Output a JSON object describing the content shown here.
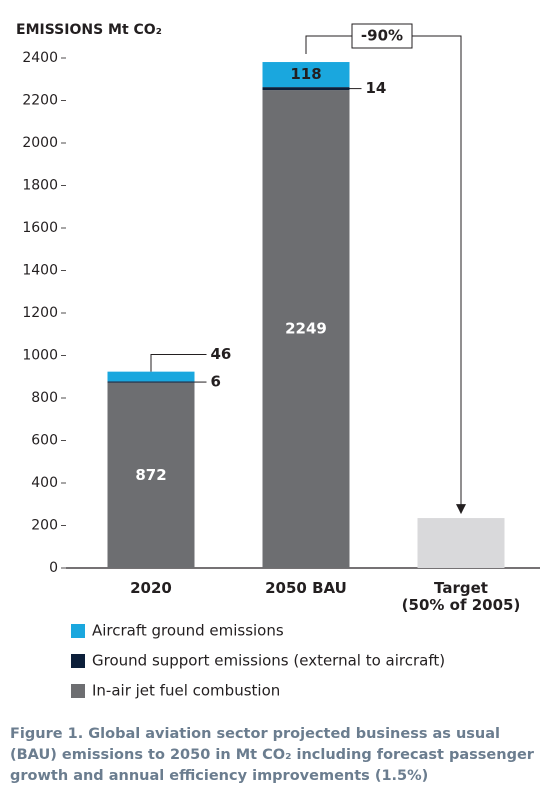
{
  "chart_data": {
    "type": "stacked_bar",
    "y_axis_label": "EMISSIONS Mt CO₂",
    "categories": [
      "2020",
      "2050 BAU",
      "Target\n(50% of 2005)"
    ],
    "series": [
      {
        "name": "In-air jet fuel combustion",
        "color": "#6d6e71",
        "values": [
          872,
          2249,
          null
        ]
      },
      {
        "name": "Ground support emissions (external to aircraft)",
        "color": "#0c1f3a",
        "values": [
          6,
          14,
          null
        ]
      },
      {
        "name": "Aircraft ground emissions",
        "color": "#1aa7de",
        "values": [
          46,
          118,
          null
        ]
      },
      {
        "color": "#d9d9db",
        "values": [
          null,
          null,
          235
        ]
      }
    ],
    "ylim": [
      0,
      2400
    ],
    "yticks": [
      0,
      200,
      400,
      600,
      800,
      1000,
      1200,
      1400,
      1600,
      1800,
      2000,
      2200,
      2400
    ],
    "annotation": "-90%",
    "caption": [
      "Figure 1. Global aviation sector projected business as usual",
      "(BAU) emissions to 2050 in Mt CO₂ including forecast passenger",
      "growth and annual efficiency improvements (1.5%)"
    ]
  }
}
